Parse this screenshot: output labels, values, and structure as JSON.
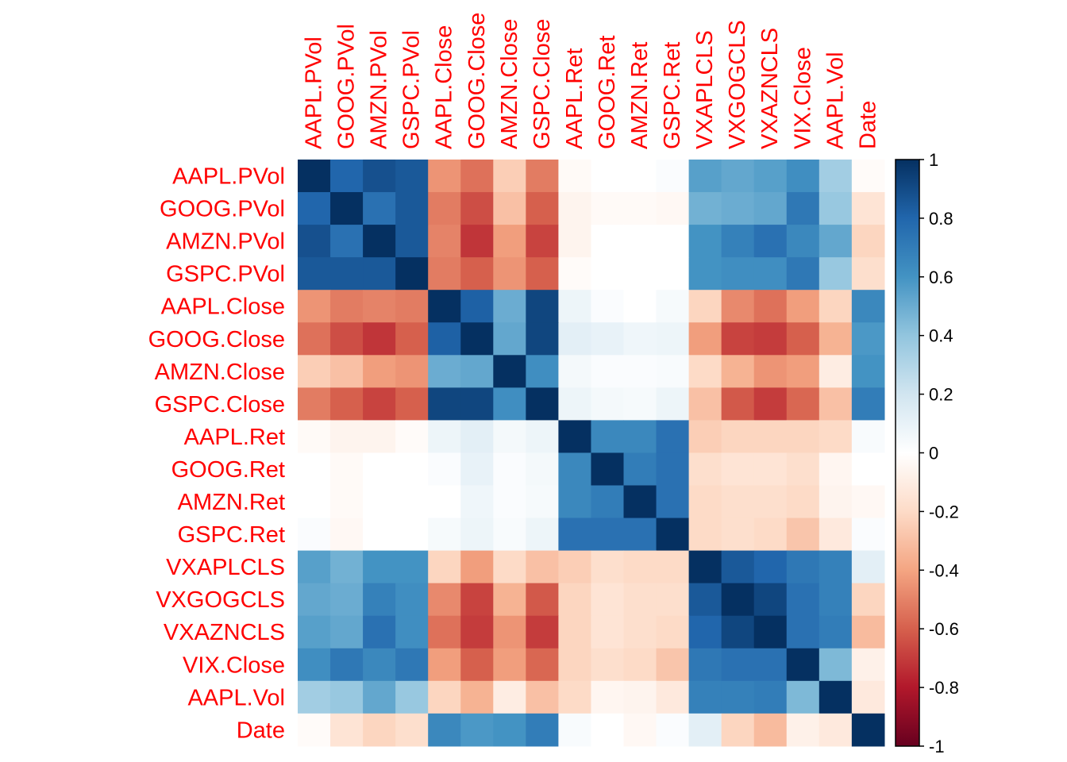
{
  "chart_data": {
    "type": "heatmap",
    "title": "",
    "xlabel": "",
    "ylabel": "",
    "variables": [
      "AAPL.PVol",
      "GOOG.PVol",
      "AMZN.PVol",
      "GSPC.PVol",
      "AAPL.Close",
      "GOOG.Close",
      "AMZN.Close",
      "GSPC.Close",
      "AAPL.Ret",
      "GOOG.Ret",
      "AMZN.Ret",
      "GSPC.Ret",
      "VXAPLCLS",
      "VXGOGCLS",
      "VXAZNCLS",
      "VIX.Close",
      "AAPL.Vol",
      "Date"
    ],
    "label_color": "#ff0000",
    "zlim": [
      -1,
      1
    ],
    "colorbar": {
      "ticks": [
        1,
        0.8,
        0.6,
        0.4,
        0.2,
        0,
        -0.2,
        -0.4,
        -0.6,
        -0.8,
        -1
      ],
      "tick_labels": [
        "1",
        "0.8",
        "0.6",
        "0.4",
        "0.2",
        "0",
        "-0.2",
        "-0.4",
        "-0.6",
        "-0.8",
        "-1"
      ],
      "position": "right"
    },
    "palette": [
      "#67001F",
      "#B2182B",
      "#D6604D",
      "#F4A582",
      "#FDDBC7",
      "#FFFFFF",
      "#D1E5F0",
      "#92C5DE",
      "#4393C3",
      "#2166AC",
      "#053061"
    ],
    "matrix": [
      [
        1.0,
        0.8,
        0.88,
        0.85,
        -0.45,
        -0.55,
        -0.25,
        -0.52,
        -0.03,
        0.0,
        0.0,
        0.02,
        0.55,
        0.52,
        0.55,
        0.62,
        0.35,
        -0.02
      ],
      [
        0.8,
        1.0,
        0.75,
        0.85,
        -0.52,
        -0.65,
        -0.3,
        -0.6,
        -0.06,
        -0.03,
        -0.03,
        -0.04,
        0.48,
        0.5,
        0.52,
        0.72,
        0.38,
        -0.15
      ],
      [
        0.88,
        0.75,
        1.0,
        0.85,
        -0.5,
        -0.72,
        -0.42,
        -0.68,
        -0.06,
        0.0,
        0.0,
        0.0,
        0.6,
        0.68,
        0.75,
        0.65,
        0.52,
        -0.22
      ],
      [
        0.85,
        0.85,
        0.85,
        1.0,
        -0.52,
        -0.6,
        -0.45,
        -0.6,
        -0.02,
        0.0,
        0.0,
        0.0,
        0.6,
        0.62,
        0.62,
        0.72,
        0.38,
        -0.18
      ],
      [
        -0.45,
        -0.52,
        -0.5,
        -0.52,
        1.0,
        0.82,
        0.5,
        0.92,
        0.08,
        0.02,
        0.0,
        0.04,
        -0.22,
        -0.48,
        -0.55,
        -0.42,
        -0.22,
        0.65
      ],
      [
        -0.55,
        -0.65,
        -0.72,
        -0.6,
        0.82,
        1.0,
        0.52,
        0.92,
        0.12,
        0.1,
        0.07,
        0.08,
        -0.42,
        -0.68,
        -0.7,
        -0.6,
        -0.35,
        0.58
      ],
      [
        -0.25,
        -0.3,
        -0.42,
        -0.45,
        0.5,
        0.52,
        1.0,
        0.62,
        0.05,
        0.02,
        0.02,
        0.03,
        -0.2,
        -0.35,
        -0.45,
        -0.42,
        -0.1,
        0.6
      ],
      [
        -0.52,
        -0.6,
        -0.68,
        -0.6,
        0.92,
        0.92,
        0.62,
        1.0,
        0.08,
        0.05,
        0.04,
        0.08,
        -0.3,
        -0.62,
        -0.7,
        -0.58,
        -0.3,
        0.7
      ],
      [
        -0.03,
        -0.06,
        -0.06,
        -0.02,
        0.08,
        0.12,
        0.05,
        0.08,
        1.0,
        0.65,
        0.65,
        0.75,
        -0.25,
        -0.22,
        -0.22,
        -0.22,
        -0.2,
        0.03
      ],
      [
        0.0,
        -0.03,
        0.0,
        0.0,
        0.02,
        0.1,
        0.02,
        0.05,
        0.65,
        1.0,
        0.7,
        0.75,
        -0.18,
        -0.15,
        -0.15,
        -0.18,
        -0.05,
        0.0
      ],
      [
        0.0,
        -0.03,
        0.0,
        0.0,
        0.0,
        0.07,
        0.02,
        0.04,
        0.65,
        0.7,
        1.0,
        0.75,
        -0.2,
        -0.18,
        -0.18,
        -0.2,
        -0.06,
        -0.04
      ],
      [
        0.02,
        -0.04,
        0.0,
        0.0,
        0.04,
        0.08,
        0.03,
        0.08,
        0.75,
        0.75,
        0.75,
        1.0,
        -0.2,
        -0.18,
        -0.2,
        -0.28,
        -0.12,
        0.02
      ],
      [
        0.55,
        0.48,
        0.6,
        0.6,
        -0.22,
        -0.42,
        -0.2,
        -0.3,
        -0.25,
        -0.18,
        -0.2,
        -0.2,
        1.0,
        0.85,
        0.8,
        0.72,
        0.68,
        0.12
      ],
      [
        0.52,
        0.5,
        0.68,
        0.62,
        -0.48,
        -0.68,
        -0.35,
        -0.62,
        -0.22,
        -0.15,
        -0.18,
        -0.18,
        0.85,
        1.0,
        0.92,
        0.75,
        0.68,
        -0.22
      ],
      [
        0.55,
        0.52,
        0.75,
        0.62,
        -0.55,
        -0.7,
        -0.45,
        -0.7,
        -0.22,
        -0.15,
        -0.18,
        -0.2,
        0.8,
        0.92,
        1.0,
        0.75,
        0.7,
        -0.32
      ],
      [
        0.62,
        0.72,
        0.65,
        0.72,
        -0.42,
        -0.6,
        -0.42,
        -0.58,
        -0.22,
        -0.18,
        -0.2,
        -0.28,
        0.72,
        0.75,
        0.75,
        1.0,
        0.45,
        -0.08
      ],
      [
        0.35,
        0.38,
        0.52,
        0.38,
        -0.22,
        -0.35,
        -0.1,
        -0.3,
        -0.2,
        -0.05,
        -0.06,
        -0.12,
        0.68,
        0.68,
        0.7,
        0.45,
        1.0,
        -0.12
      ],
      [
        -0.02,
        -0.15,
        -0.22,
        -0.18,
        0.65,
        0.58,
        0.6,
        0.7,
        0.03,
        0.0,
        -0.04,
        0.02,
        0.12,
        -0.22,
        -0.32,
        -0.08,
        -0.12,
        1.0
      ]
    ]
  }
}
